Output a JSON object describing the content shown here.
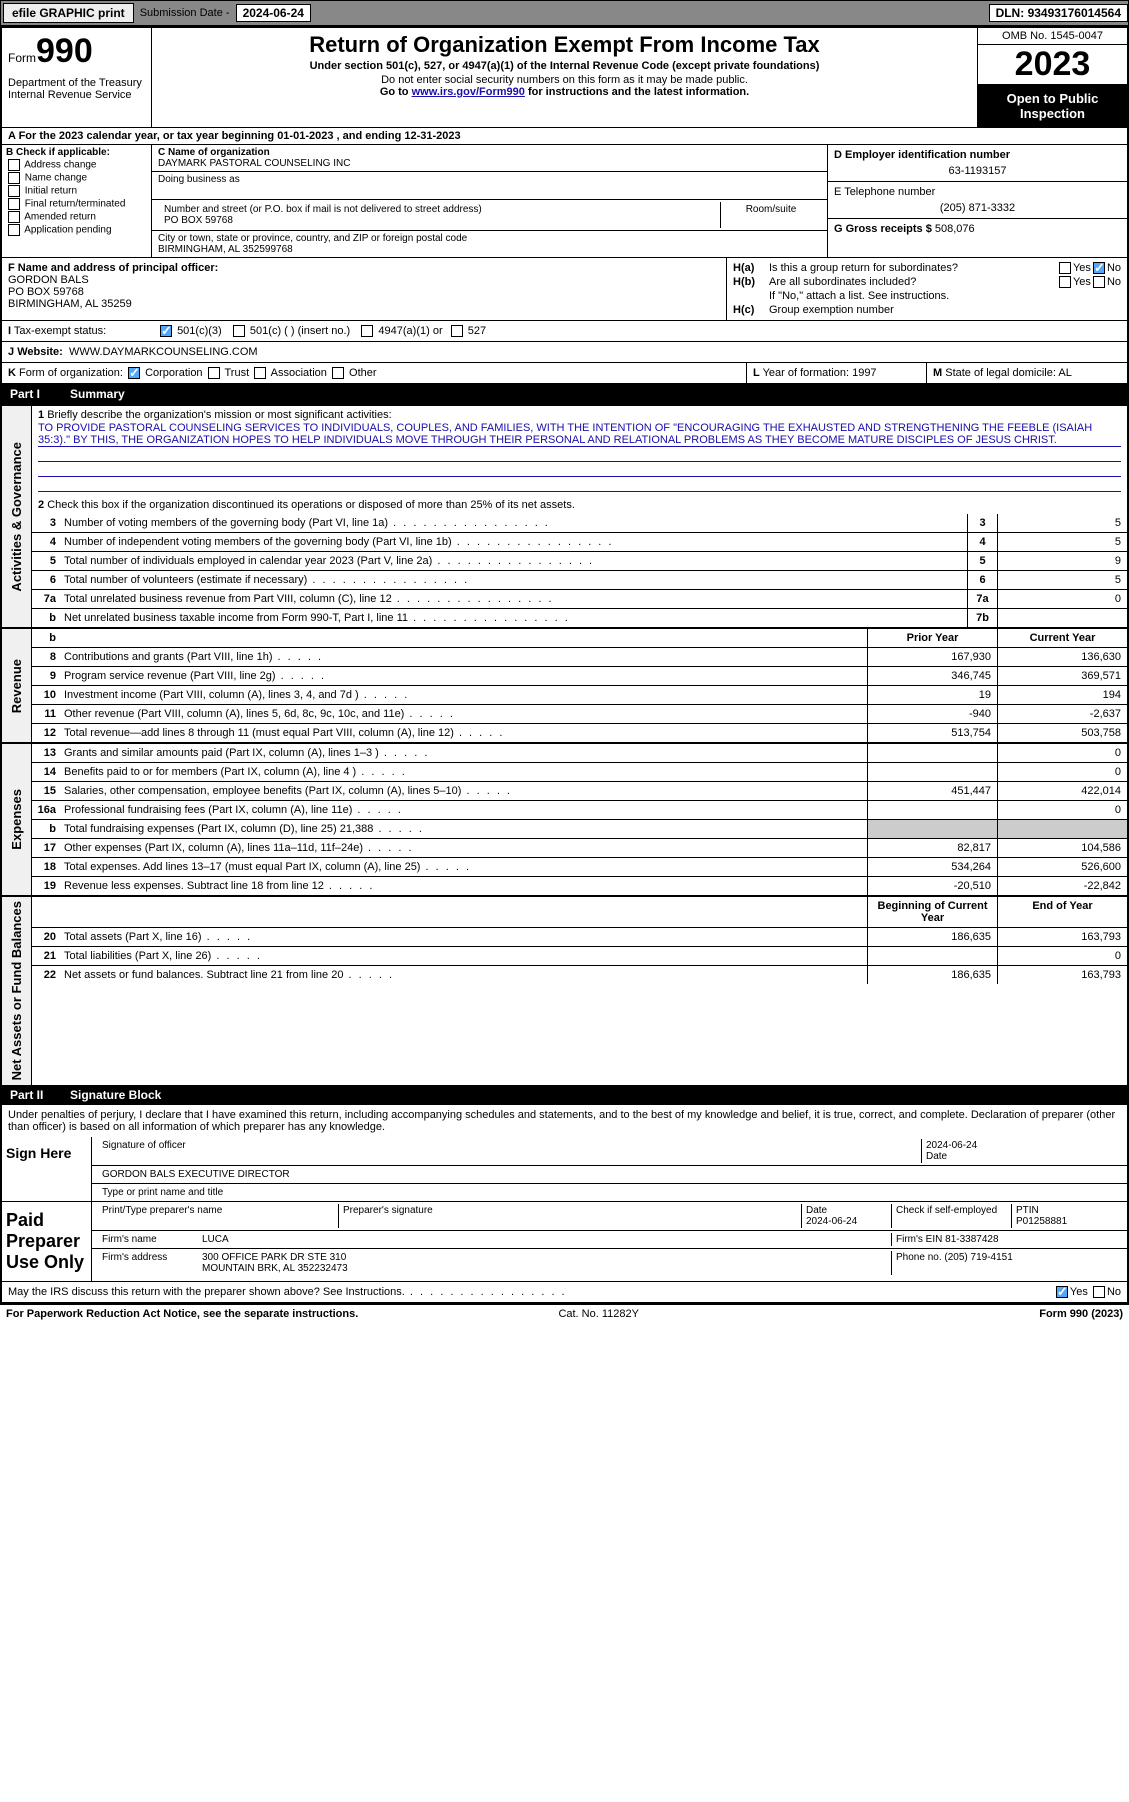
{
  "topbar": {
    "efile": "efile GRAPHIC print",
    "sub_label": "Submission Date - ",
    "sub_date": "2024-06-24",
    "dln_label": "DLN: ",
    "dln": "93493176014564"
  },
  "header": {
    "form_word": "Form",
    "form_no": "990",
    "dept": "Department of the Treasury\nInternal Revenue Service",
    "title": "Return of Organization Exempt From Income Tax",
    "subtitle": "Under section 501(c), 527, or 4947(a)(1) of the Internal Revenue Code (except private foundations)",
    "note": "Do not enter social security numbers on this form as it may be made public.",
    "goto_pre": "Go to ",
    "goto_link": "www.irs.gov/Form990",
    "goto_post": " for instructions and the latest information.",
    "omb": "OMB No. 1545-0047",
    "year": "2023",
    "open": "Open to Public Inspection"
  },
  "line_a": "A For the 2023 calendar year, or tax year beginning 01-01-2023   , and ending 12-31-2023",
  "section_b": {
    "hdr": "B Check if applicable:",
    "opts": [
      "Address change",
      "Name change",
      "Initial return",
      "Final return/terminated",
      "Amended return",
      "Application pending"
    ]
  },
  "section_c": {
    "name_lbl": "C Name of organization",
    "name": "DAYMARK PASTORAL COUNSELING INC",
    "dba_lbl": "Doing business as",
    "street_lbl": "Number and street (or P.O. box if mail is not delivered to street address)",
    "room_lbl": "Room/suite",
    "street": "PO BOX 59768",
    "city_lbl": "City or town, state or province, country, and ZIP or foreign postal code",
    "city": "BIRMINGHAM, AL  352599768"
  },
  "section_d": {
    "lbl": "D Employer identification number",
    "val": "63-1193157"
  },
  "section_e": {
    "lbl": "E Telephone number",
    "val": "(205) 871-3332"
  },
  "section_g": {
    "lbl": "G Gross receipts $ ",
    "val": "508,076"
  },
  "section_f": {
    "lbl": "F Name and address of principal officer:",
    "name": "GORDON BALS",
    "street": "PO BOX 59768",
    "city": "BIRMINGHAM, AL  35259"
  },
  "section_h": {
    "a_lbl": "H(a)",
    "a_txt": "Is this a group return for subordinates?",
    "b_lbl": "H(b)",
    "b_txt": "Are all subordinates included?",
    "b_note": "If \"No,\" attach a list. See instructions.",
    "c_lbl": "H(c)",
    "c_txt": "Group exemption number",
    "yes": "Yes",
    "no": "No"
  },
  "section_i": {
    "lbl": "I",
    "txt": "Tax-exempt status:",
    "o1": "501(c)(3)",
    "o2": "501(c) (  ) (insert no.)",
    "o3": "4947(a)(1) or",
    "o4": "527"
  },
  "section_j": {
    "lbl": "J",
    "txt": "Website:",
    "val": "WWW.DAYMARKCOUNSELING.COM"
  },
  "section_k": {
    "lbl": "K",
    "txt": "Form of organization:",
    "o1": "Corporation",
    "o2": "Trust",
    "o3": "Association",
    "o4": "Other"
  },
  "section_l": {
    "lbl": "L",
    "txt": "Year of formation: ",
    "val": "1997"
  },
  "section_m": {
    "lbl": "M",
    "txt": "State of legal domicile: ",
    "val": "AL"
  },
  "part1": {
    "pno": "Part I",
    "title": "Summary",
    "q1": "Briefly describe the organization's mission or most significant activities:",
    "mission": "TO PROVIDE PASTORAL COUNSELING SERVICES TO INDIVIDUALS, COUPLES, AND FAMILIES, WITH THE INTENTION OF \"ENCOURAGING THE EXHAUSTED AND STRENGTHENING THE FEEBLE (ISAIAH 35:3).\" BY THIS, THE ORGANIZATION HOPES TO HELP INDIVIDUALS MOVE THROUGH THEIR PERSONAL AND RELATIONAL PROBLEMS AS THEY BECOME MATURE DISCIPLES OF JESUS CHRIST.",
    "q2": "Check this box      if the organization discontinued its operations or disposed of more than 25% of its net assets.",
    "gov_rows": [
      {
        "n": "3",
        "d": "Number of voting members of the governing body (Part VI, line 1a)",
        "b": "3",
        "v": "5"
      },
      {
        "n": "4",
        "d": "Number of independent voting members of the governing body (Part VI, line 1b)",
        "b": "4",
        "v": "5"
      },
      {
        "n": "5",
        "d": "Total number of individuals employed in calendar year 2023 (Part V, line 2a)",
        "b": "5",
        "v": "9"
      },
      {
        "n": "6",
        "d": "Total number of volunteers (estimate if necessary)",
        "b": "6",
        "v": "5"
      },
      {
        "n": "7a",
        "d": "Total unrelated business revenue from Part VIII, column (C), line 12",
        "b": "7a",
        "v": "0"
      },
      {
        "n": "b",
        "d": "Net unrelated business taxable income from Form 990-T, Part I, line 11",
        "b": "7b",
        "v": ""
      }
    ],
    "rev_hdr": {
      "py": "Prior Year",
      "cy": "Current Year"
    },
    "rev_rows": [
      {
        "n": "8",
        "d": "Contributions and grants (Part VIII, line 1h)",
        "py": "167,930",
        "cy": "136,630"
      },
      {
        "n": "9",
        "d": "Program service revenue (Part VIII, line 2g)",
        "py": "346,745",
        "cy": "369,571"
      },
      {
        "n": "10",
        "d": "Investment income (Part VIII, column (A), lines 3, 4, and 7d )",
        "py": "19",
        "cy": "194"
      },
      {
        "n": "11",
        "d": "Other revenue (Part VIII, column (A), lines 5, 6d, 8c, 9c, 10c, and 11e)",
        "py": "-940",
        "cy": "-2,637"
      },
      {
        "n": "12",
        "d": "Total revenue—add lines 8 through 11 (must equal Part VIII, column (A), line 12)",
        "py": "513,754",
        "cy": "503,758"
      }
    ],
    "exp_rows": [
      {
        "n": "13",
        "d": "Grants and similar amounts paid (Part IX, column (A), lines 1–3 )",
        "py": "",
        "cy": "0"
      },
      {
        "n": "14",
        "d": "Benefits paid to or for members (Part IX, column (A), line 4 )",
        "py": "",
        "cy": "0"
      },
      {
        "n": "15",
        "d": "Salaries, other compensation, employee benefits (Part IX, column (A), lines 5–10)",
        "py": "451,447",
        "cy": "422,014"
      },
      {
        "n": "16a",
        "d": "Professional fundraising fees (Part IX, column (A), line 11e)",
        "py": "",
        "cy": "0"
      },
      {
        "n": "b",
        "d": "Total fundraising expenses (Part IX, column (D), line 25) 21,388",
        "py": "grey",
        "cy": "grey"
      },
      {
        "n": "17",
        "d": "Other expenses (Part IX, column (A), lines 11a–11d, 11f–24e)",
        "py": "82,817",
        "cy": "104,586"
      },
      {
        "n": "18",
        "d": "Total expenses. Add lines 13–17 (must equal Part IX, column (A), line 25)",
        "py": "534,264",
        "cy": "526,600"
      },
      {
        "n": "19",
        "d": "Revenue less expenses. Subtract line 18 from line 12",
        "py": "-20,510",
        "cy": "-22,842"
      }
    ],
    "na_hdr": {
      "py": "Beginning of Current Year",
      "cy": "End of Year"
    },
    "na_rows": [
      {
        "n": "20",
        "d": "Total assets (Part X, line 16)",
        "py": "186,635",
        "cy": "163,793"
      },
      {
        "n": "21",
        "d": "Total liabilities (Part X, line 26)",
        "py": "",
        "cy": "0"
      },
      {
        "n": "22",
        "d": "Net assets or fund balances. Subtract line 21 from line 20",
        "py": "186,635",
        "cy": "163,793"
      }
    ],
    "vlabels": [
      "Activities & Governance",
      "Revenue",
      "Expenses",
      "Net Assets or Fund Balances"
    ]
  },
  "part2": {
    "pno": "Part II",
    "title": "Signature Block",
    "decl": "Under penalties of perjury, I declare that I have examined this return, including accompanying schedules and statements, and to the best of my knowledge and belief, it is true, correct, and complete. Declaration of preparer (other than officer) is based on all information of which preparer has any knowledge.",
    "sign_here": "Sign Here",
    "sig_of": "Signature of officer",
    "sig_date": "2024-06-24",
    "date_lbl": "Date",
    "officer": "GORDON BALS EXECUTIVE DIRECTOR",
    "type_lbl": "Type or print name and title",
    "paid": "Paid Preparer Use Only",
    "prep_name_lbl": "Print/Type preparer's name",
    "prep_sig_lbl": "Preparer's signature",
    "prep_date": "2024-06-24",
    "check_lbl": "Check         if self-employed",
    "ptin_lbl": "PTIN",
    "ptin": "P01258881",
    "firm_lbl": "Firm's name",
    "firm": "LUCA",
    "ein_lbl": "Firm's EIN",
    "ein": "81-3387428",
    "addr_lbl": "Firm's address",
    "addr1": "300 OFFICE PARK DR STE 310",
    "addr2": "MOUNTAIN BRK, AL  352232473",
    "phone_lbl": "Phone no.",
    "phone": "(205) 719-4151",
    "discuss": "May the IRS discuss this return with the preparer shown above? See Instructions."
  },
  "footer": {
    "l": "For Paperwork Reduction Act Notice, see the separate instructions.",
    "m": "Cat. No. 11282Y",
    "r": "Form 990 (2023)"
  }
}
